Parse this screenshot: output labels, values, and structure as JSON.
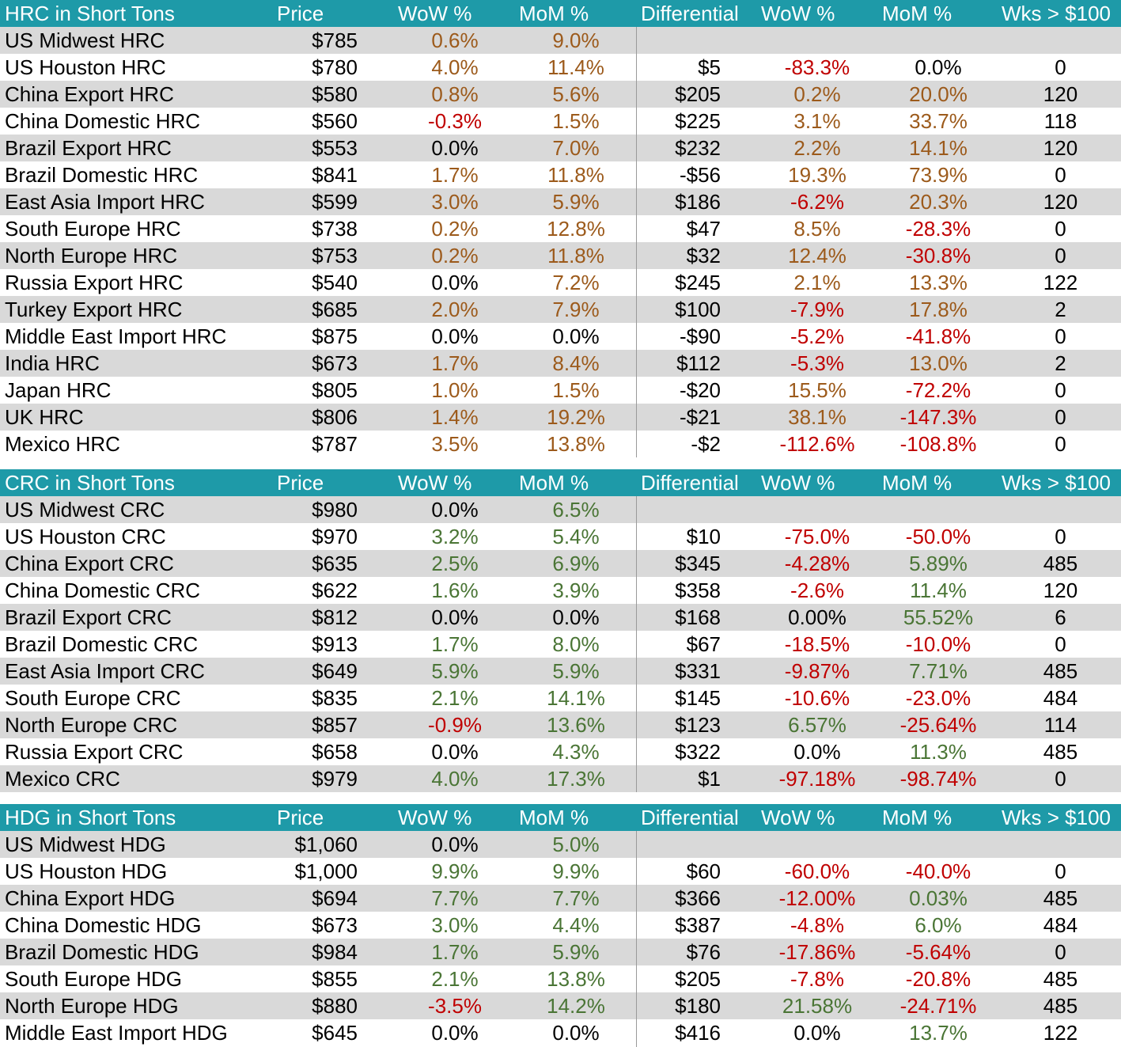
{
  "colors": {
    "header_bg": "#1e9aa8",
    "row_shade": "#d9d9d9",
    "brown": "#9c5a1b",
    "green": "#4a7535",
    "red": "#c00000",
    "black": "#000000"
  },
  "tables": [
    {
      "headers": [
        "HRC in Short Tons",
        "Price",
        "WoW %",
        "MoM %",
        "Differential",
        "WoW %",
        "MoM %",
        "Wks > $100"
      ],
      "rows": [
        {
          "name": "US Midwest HRC",
          "price": "$785",
          "wow": "0.6%",
          "mom": "9.0%",
          "diff": "",
          "dwow": "",
          "dmom": "",
          "wks": "",
          "c": [
            "brown",
            "brown",
            "black",
            "black"
          ]
        },
        {
          "name": "US Houston HRC",
          "price": "$780",
          "wow": "4.0%",
          "mom": "11.4%",
          "diff": "$5",
          "dwow": "-83.3%",
          "dmom": "0.0%",
          "wks": "0",
          "c": [
            "brown",
            "brown",
            "red",
            "black"
          ]
        },
        {
          "name": "China Export HRC",
          "price": "$580",
          "wow": "0.8%",
          "mom": "5.6%",
          "diff": "$205",
          "dwow": "0.2%",
          "dmom": "20.0%",
          "wks": "120",
          "c": [
            "brown",
            "brown",
            "brown",
            "brown"
          ]
        },
        {
          "name": "China Domestic HRC",
          "price": "$560",
          "wow": "-0.3%",
          "mom": "1.5%",
          "diff": "$225",
          "dwow": "3.1%",
          "dmom": "33.7%",
          "wks": "118",
          "c": [
            "red",
            "brown",
            "brown",
            "brown"
          ]
        },
        {
          "name": "Brazil Export HRC",
          "price": "$553",
          "wow": "0.0%",
          "mom": "7.0%",
          "diff": "$232",
          "dwow": "2.2%",
          "dmom": "14.1%",
          "wks": "120",
          "c": [
            "black",
            "brown",
            "brown",
            "brown"
          ]
        },
        {
          "name": "Brazil Domestic HRC",
          "price": "$841",
          "wow": "1.7%",
          "mom": "11.8%",
          "diff": "-$56",
          "dwow": "19.3%",
          "dmom": "73.9%",
          "wks": "0",
          "c": [
            "brown",
            "brown",
            "brown",
            "brown"
          ]
        },
        {
          "name": "East Asia Import HRC",
          "price": "$599",
          "wow": "3.0%",
          "mom": "5.9%",
          "diff": "$186",
          "dwow": "-6.2%",
          "dmom": "20.3%",
          "wks": "120",
          "c": [
            "brown",
            "brown",
            "red",
            "brown"
          ]
        },
        {
          "name": "South Europe HRC",
          "price": "$738",
          "wow": "0.2%",
          "mom": "12.8%",
          "diff": "$47",
          "dwow": "8.5%",
          "dmom": "-28.3%",
          "wks": "0",
          "c": [
            "brown",
            "brown",
            "brown",
            "red"
          ]
        },
        {
          "name": "North Europe HRC",
          "price": "$753",
          "wow": "0.2%",
          "mom": "11.8%",
          "diff": "$32",
          "dwow": "12.4%",
          "dmom": "-30.8%",
          "wks": "0",
          "c": [
            "brown",
            "brown",
            "brown",
            "red"
          ]
        },
        {
          "name": "Russia Export HRC",
          "price": "$540",
          "wow": "0.0%",
          "mom": "7.2%",
          "diff": "$245",
          "dwow": "2.1%",
          "dmom": "13.3%",
          "wks": "122",
          "c": [
            "black",
            "brown",
            "brown",
            "brown"
          ]
        },
        {
          "name": "Turkey Export HRC",
          "price": "$685",
          "wow": "2.0%",
          "mom": "7.9%",
          "diff": "$100",
          "dwow": "-7.9%",
          "dmom": "17.8%",
          "wks": "2",
          "c": [
            "brown",
            "brown",
            "red",
            "brown"
          ]
        },
        {
          "name": "Middle East Import HRC",
          "price": "$875",
          "wow": "0.0%",
          "mom": "0.0%",
          "diff": "-$90",
          "dwow": "-5.2%",
          "dmom": "-41.8%",
          "wks": "0",
          "c": [
            "black",
            "black",
            "red",
            "red"
          ]
        },
        {
          "name": "India HRC",
          "price": "$673",
          "wow": "1.7%",
          "mom": "8.4%",
          "diff": "$112",
          "dwow": "-5.3%",
          "dmom": "13.0%",
          "wks": "2",
          "c": [
            "brown",
            "brown",
            "red",
            "brown"
          ]
        },
        {
          "name": "Japan HRC",
          "price": "$805",
          "wow": "1.0%",
          "mom": "1.5%",
          "diff": "-$20",
          "dwow": "15.5%",
          "dmom": "-72.2%",
          "wks": "0",
          "c": [
            "brown",
            "brown",
            "brown",
            "red"
          ]
        },
        {
          "name": "UK HRC",
          "price": "$806",
          "wow": "1.4%",
          "mom": "19.2%",
          "diff": "-$21",
          "dwow": "38.1%",
          "dmom": "-147.3%",
          "wks": "0",
          "c": [
            "brown",
            "brown",
            "brown",
            "red"
          ]
        },
        {
          "name": "Mexico HRC",
          "price": "$787",
          "wow": "3.5%",
          "mom": "13.8%",
          "diff": "-$2",
          "dwow": "-112.6%",
          "dmom": "-108.8%",
          "wks": "0",
          "c": [
            "brown",
            "brown",
            "red",
            "red"
          ]
        }
      ]
    },
    {
      "headers": [
        "CRC in Short Tons",
        "Price",
        "WoW %",
        "MoM %",
        "Differential",
        "WoW %",
        "MoM %",
        "Wks > $100"
      ],
      "rows": [
        {
          "name": "US Midwest CRC",
          "price": "$980",
          "wow": "0.0%",
          "mom": "6.5%",
          "diff": "",
          "dwow": "",
          "dmom": "",
          "wks": "",
          "c": [
            "black",
            "green",
            "black",
            "black"
          ]
        },
        {
          "name": "US Houston CRC",
          "price": "$970",
          "wow": "3.2%",
          "mom": "5.4%",
          "diff": "$10",
          "dwow": "-75.0%",
          "dmom": "-50.0%",
          "wks": "0",
          "c": [
            "green",
            "green",
            "red",
            "red"
          ]
        },
        {
          "name": "China Export CRC",
          "price": "$635",
          "wow": "2.5%",
          "mom": "6.9%",
          "diff": "$345",
          "dwow": "-4.28%",
          "dmom": "5.89%",
          "wks": "485",
          "c": [
            "green",
            "green",
            "red",
            "green"
          ]
        },
        {
          "name": "China Domestic CRC",
          "price": "$622",
          "wow": "1.6%",
          "mom": "3.9%",
          "diff": "$358",
          "dwow": "-2.6%",
          "dmom": "11.4%",
          "wks": "120",
          "c": [
            "green",
            "green",
            "red",
            "green"
          ]
        },
        {
          "name": "Brazil Export CRC",
          "price": "$812",
          "wow": "0.0%",
          "mom": "0.0%",
          "diff": "$168",
          "dwow": "0.00%",
          "dmom": "55.52%",
          "wks": "6",
          "c": [
            "black",
            "black",
            "black",
            "green"
          ]
        },
        {
          "name": "Brazil Domestic CRC",
          "price": "$913",
          "wow": "1.7%",
          "mom": "8.0%",
          "diff": "$67",
          "dwow": "-18.5%",
          "dmom": "-10.0%",
          "wks": "0",
          "c": [
            "green",
            "green",
            "red",
            "red"
          ]
        },
        {
          "name": "East Asia Import CRC",
          "price": "$649",
          "wow": "5.9%",
          "mom": "5.9%",
          "diff": "$331",
          "dwow": "-9.87%",
          "dmom": "7.71%",
          "wks": "485",
          "c": [
            "green",
            "green",
            "red",
            "green"
          ]
        },
        {
          "name": "South Europe CRC",
          "price": "$835",
          "wow": "2.1%",
          "mom": "14.1%",
          "diff": "$145",
          "dwow": "-10.6%",
          "dmom": "-23.0%",
          "wks": "484",
          "c": [
            "green",
            "green",
            "red",
            "red"
          ]
        },
        {
          "name": "North Europe CRC",
          "price": "$857",
          "wow": "-0.9%",
          "mom": "13.6%",
          "diff": "$123",
          "dwow": "6.57%",
          "dmom": "-25.64%",
          "wks": "114",
          "c": [
            "red",
            "green",
            "green",
            "red"
          ]
        },
        {
          "name": "Russia Export CRC",
          "price": "$658",
          "wow": "0.0%",
          "mom": "4.3%",
          "diff": "$322",
          "dwow": "0.0%",
          "dmom": "11.3%",
          "wks": "485",
          "c": [
            "black",
            "green",
            "black",
            "green"
          ]
        },
        {
          "name": "Mexico CRC",
          "price": "$979",
          "wow": "4.0%",
          "mom": "17.3%",
          "diff": "$1",
          "dwow": "-97.18%",
          "dmom": "-98.74%",
          "wks": "0",
          "c": [
            "green",
            "green",
            "red",
            "red"
          ]
        }
      ]
    },
    {
      "headers": [
        "HDG in Short Tons",
        "Price",
        "WoW %",
        "MoM %",
        "Differential",
        "WoW %",
        "MoM %",
        "Wks > $100"
      ],
      "rows": [
        {
          "name": "US Midwest HDG",
          "price": "$1,060",
          "wow": "0.0%",
          "mom": "5.0%",
          "diff": "",
          "dwow": "",
          "dmom": "",
          "wks": "",
          "c": [
            "black",
            "green",
            "black",
            "black"
          ]
        },
        {
          "name": "US Houston HDG",
          "price": "$1,000",
          "wow": "9.9%",
          "mom": "9.9%",
          "diff": "$60",
          "dwow": "-60.0%",
          "dmom": "-40.0%",
          "wks": "0",
          "c": [
            "green",
            "green",
            "red",
            "red"
          ]
        },
        {
          "name": "China Export HDG",
          "price": "$694",
          "wow": "7.7%",
          "mom": "7.7%",
          "diff": "$366",
          "dwow": "-12.00%",
          "dmom": "0.03%",
          "wks": "485",
          "c": [
            "green",
            "green",
            "red",
            "green"
          ]
        },
        {
          "name": "China Domestic HDG",
          "price": "$673",
          "wow": "3.0%",
          "mom": "4.4%",
          "diff": "$387",
          "dwow": "-4.8%",
          "dmom": "6.0%",
          "wks": "484",
          "c": [
            "green",
            "green",
            "red",
            "green"
          ]
        },
        {
          "name": "Brazil Domestic HDG",
          "price": "$984",
          "wow": "1.7%",
          "mom": "5.9%",
          "diff": "$76",
          "dwow": "-17.86%",
          "dmom": "-5.64%",
          "wks": "0",
          "c": [
            "green",
            "green",
            "red",
            "red"
          ]
        },
        {
          "name": "South Europe HDG",
          "price": "$855",
          "wow": "2.1%",
          "mom": "13.8%",
          "diff": "$205",
          "dwow": "-7.8%",
          "dmom": "-20.8%",
          "wks": "485",
          "c": [
            "green",
            "green",
            "red",
            "red"
          ]
        },
        {
          "name": "North Europe HDG",
          "price": "$880",
          "wow": "-3.5%",
          "mom": "14.2%",
          "diff": "$180",
          "dwow": "21.58%",
          "dmom": "-24.71%",
          "wks": "485",
          "c": [
            "red",
            "green",
            "green",
            "red"
          ]
        },
        {
          "name": "Middle East Import HDG",
          "price": "$645",
          "wow": "0.0%",
          "mom": "0.0%",
          "diff": "$416",
          "dwow": "0.0%",
          "dmom": "13.7%",
          "wks": "122",
          "c": [
            "black",
            "black",
            "black",
            "green"
          ]
        }
      ]
    }
  ]
}
